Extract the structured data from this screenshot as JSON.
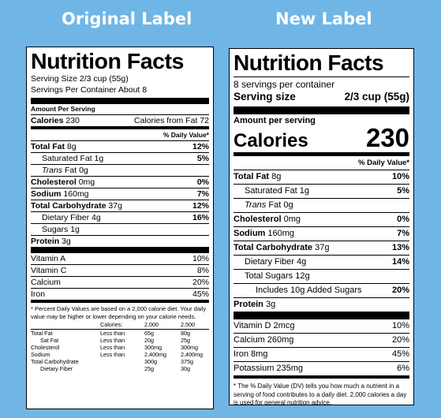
{
  "headings": {
    "original": "Original Label",
    "new": "New Label"
  },
  "original": {
    "title": "Nutrition Facts",
    "serving_size": "Serving Size 2/3 cup (55g)",
    "servings_per": "Servings Per Container About 8",
    "amount_per": "Amount Per Serving",
    "calories_label": "Calories",
    "calories_value": "230",
    "calories_fat": "Calories from Fat 72",
    "dv_header": "% Daily Value*",
    "nutrients": [
      {
        "name": "Total Fat",
        "amount": "8g",
        "dv": "12%"
      },
      {
        "name": "Saturated Fat",
        "amount": "1g",
        "dv": "5%"
      },
      {
        "name": "Trans",
        "amount": "Fat 0g",
        "dv": ""
      },
      {
        "name": "Cholesterol",
        "amount": "0mg",
        "dv": "0%"
      },
      {
        "name": "Sodium",
        "amount": "160mg",
        "dv": "7%"
      },
      {
        "name": "Total Carbohydrate",
        "amount": "37g",
        "dv": "12%"
      },
      {
        "name": "Dietary Fiber",
        "amount": "4g",
        "dv": "16%"
      },
      {
        "name": "Sugars",
        "amount": "1g",
        "dv": ""
      },
      {
        "name": "Protein",
        "amount": "3g",
        "dv": ""
      }
    ],
    "vitamins": [
      {
        "name": "Vitamin A",
        "dv": "10%"
      },
      {
        "name": "Vitamin C",
        "dv": "8%"
      },
      {
        "name": "Calcium",
        "dv": "20%"
      },
      {
        "name": "Iron",
        "dv": "45%"
      }
    ],
    "footnote": "* Percent Daily Values are based on a 2,000 calorie diet. Your daily value may be higher or lower depending on your calorie needs.",
    "table_header": {
      "label": "Calories:",
      "c2000": "2,000",
      "c2500": "2,500"
    },
    "table": [
      {
        "name": "Total Fat",
        "cmp": "Less than",
        "v1": "65g",
        "v2": "80g"
      },
      {
        "name": "Sat Fat",
        "cmp": "Less than",
        "v1": "20g",
        "v2": "25g"
      },
      {
        "name": "Cholesterol",
        "cmp": "Less than",
        "v1": "300mg",
        "v2": "300mg"
      },
      {
        "name": "Sodium",
        "cmp": "Less than",
        "v1": "2,400mg",
        "v2": "2,400mg"
      },
      {
        "name": "Total Carbohydrate",
        "cmp": "",
        "v1": "300g",
        "v2": "375g"
      },
      {
        "name": "Dietary Fiber",
        "cmp": "",
        "v1": "25g",
        "v2": "30g"
      }
    ]
  },
  "new": {
    "title": "Nutrition Facts",
    "servings_per": "8 servings per container",
    "serving_size_label": "Serving size",
    "serving_size_value": "2/3 cup (55g)",
    "amount_per": "Amount per serving",
    "calories_label": "Calories",
    "calories_value": "230",
    "dv_header": "% Daily Value*",
    "nutrients": [
      {
        "name": "Total Fat",
        "amount": "8g",
        "dv": "10%"
      },
      {
        "name": "Saturated Fat",
        "amount": "1g",
        "dv": "5%"
      },
      {
        "name": "Trans",
        "amount": "Fat 0g",
        "dv": ""
      },
      {
        "name": "Cholesterol",
        "amount": "0mg",
        "dv": "0%"
      },
      {
        "name": "Sodium",
        "amount": "160mg",
        "dv": "7%"
      },
      {
        "name": "Total Carbohydrate",
        "amount": "37g",
        "dv": "13%"
      },
      {
        "name": "Dietary Fiber",
        "amount": "4g",
        "dv": "14%"
      },
      {
        "name": "Total Sugars",
        "amount": "12g",
        "dv": ""
      },
      {
        "name": "Includes 10g Added Sugars",
        "amount": "",
        "dv": "20%"
      },
      {
        "name": "Protein",
        "amount": "3g",
        "dv": ""
      }
    ],
    "vitamins": [
      {
        "name": "Vitamin D 2mcg",
        "dv": "10%"
      },
      {
        "name": "Calcium 260mg",
        "dv": "20%"
      },
      {
        "name": "Iron 8mg",
        "dv": "45%"
      },
      {
        "name": "Potassium 235mg",
        "dv": "6%"
      }
    ],
    "footnote": "* The % Daily Value (DV) tells you how much a nutrient in a serving of food contributes to a daily diet. 2,000 calories a day is used for general nutrition advice."
  }
}
